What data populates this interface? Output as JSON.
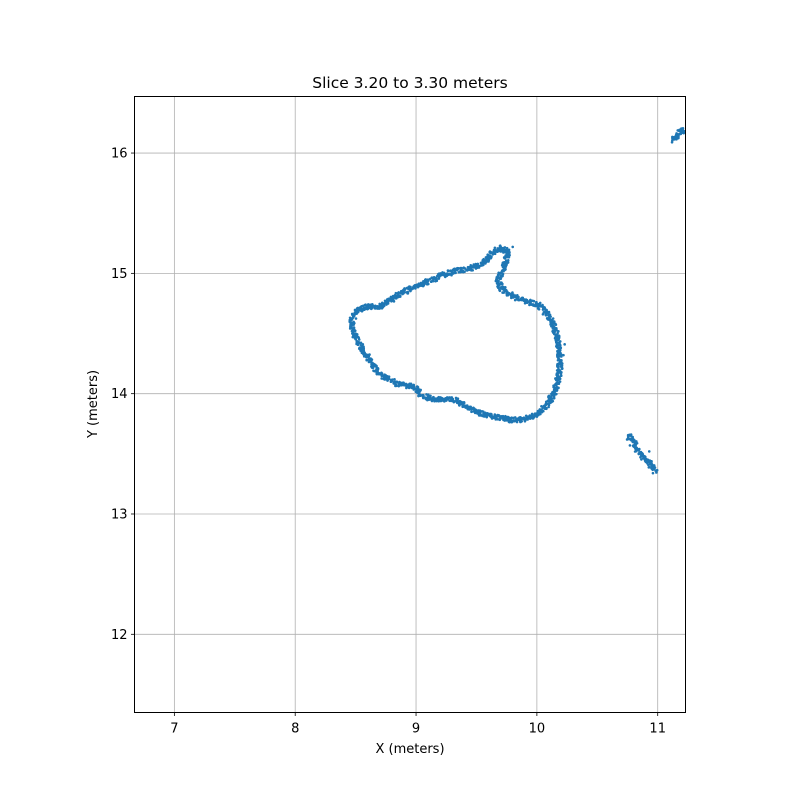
{
  "chart_data": {
    "type": "scatter",
    "title": "Slice 3.20 to 3.30 meters",
    "xlabel": "X (meters)",
    "ylabel": "Y (meters)",
    "xlim": [
      6.67,
      11.23
    ],
    "ylim": [
      11.35,
      16.47
    ],
    "xticks": [
      7,
      8,
      9,
      10,
      11
    ],
    "yticks": [
      12,
      13,
      14,
      15,
      16
    ],
    "xtick_labels": [
      "7",
      "8",
      "9",
      "10",
      "11"
    ],
    "ytick_labels": [
      "12",
      "13",
      "14",
      "15",
      "16"
    ],
    "grid": true,
    "marker_color": "#1f77b4",
    "series": [
      {
        "shape": "closed-loop",
        "points": [
          [
            8.47,
            14.62
          ],
          [
            8.52,
            14.7
          ],
          [
            8.6,
            14.72
          ],
          [
            8.72,
            14.73
          ],
          [
            8.85,
            14.82
          ],
          [
            8.97,
            14.88
          ],
          [
            9.1,
            14.93
          ],
          [
            9.2,
            14.98
          ],
          [
            9.32,
            15.02
          ],
          [
            9.45,
            15.04
          ],
          [
            9.55,
            15.08
          ],
          [
            9.63,
            15.17
          ],
          [
            9.7,
            15.21
          ],
          [
            9.76,
            15.18
          ],
          [
            9.74,
            15.08
          ],
          [
            9.68,
            14.95
          ],
          [
            9.7,
            14.88
          ],
          [
            9.78,
            14.82
          ],
          [
            9.88,
            14.78
          ],
          [
            10.0,
            14.74
          ],
          [
            10.08,
            14.68
          ],
          [
            10.13,
            14.58
          ],
          [
            10.17,
            14.47
          ],
          [
            10.18,
            14.38
          ],
          [
            10.19,
            14.3
          ],
          [
            10.19,
            14.2
          ],
          [
            10.17,
            14.1
          ],
          [
            10.14,
            14.0
          ],
          [
            10.08,
            13.9
          ],
          [
            10.0,
            13.83
          ],
          [
            9.9,
            13.79
          ],
          [
            9.8,
            13.78
          ],
          [
            9.7,
            13.8
          ],
          [
            9.6,
            13.82
          ],
          [
            9.5,
            13.85
          ],
          [
            9.42,
            13.89
          ],
          [
            9.33,
            13.95
          ],
          [
            9.22,
            13.95
          ],
          [
            9.12,
            13.96
          ],
          [
            9.04,
            13.99
          ],
          [
            9.0,
            14.05
          ],
          [
            8.92,
            14.07
          ],
          [
            8.82,
            14.09
          ],
          [
            8.72,
            14.15
          ],
          [
            8.63,
            14.25
          ],
          [
            8.57,
            14.35
          ],
          [
            8.51,
            14.45
          ],
          [
            8.47,
            14.55
          ],
          [
            8.47,
            14.62
          ]
        ]
      },
      {
        "shape": "open",
        "points": [
          [
            10.76,
            13.64
          ],
          [
            10.79,
            13.63
          ],
          [
            10.81,
            13.58
          ],
          [
            10.85,
            13.5
          ],
          [
            10.9,
            13.45
          ],
          [
            10.95,
            13.4
          ],
          [
            10.98,
            13.35
          ]
        ]
      },
      {
        "shape": "open",
        "points": [
          [
            11.13,
            16.11
          ],
          [
            11.16,
            16.15
          ],
          [
            11.19,
            16.18
          ],
          [
            11.23,
            16.19
          ]
        ]
      }
    ],
    "stray_points": [
      [
        8.5,
        14.5
      ],
      [
        8.53,
        14.45
      ],
      [
        9.8,
        15.22
      ],
      [
        10.05,
        14.66
      ],
      [
        10.12,
        14.56
      ],
      [
        10.23,
        14.41
      ],
      [
        10.22,
        14.32
      ],
      [
        10.21,
        14.25
      ],
      [
        10.11,
        13.95
      ],
      [
        10.02,
        13.86
      ],
      [
        10.78,
        13.66
      ],
      [
        10.77,
        13.57
      ],
      [
        10.93,
        13.52
      ],
      [
        10.89,
        13.48
      ]
    ]
  }
}
